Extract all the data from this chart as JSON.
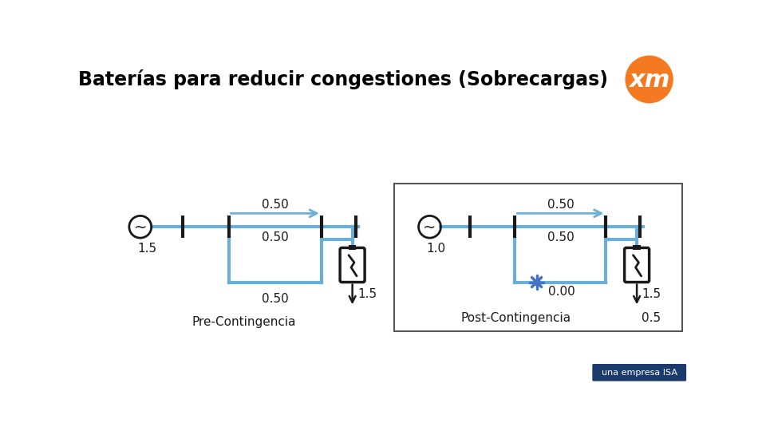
{
  "title": "Baterías para reducir congestiones (Sobrecargas)",
  "title_fontsize": 17,
  "title_fontweight": "bold",
  "bg_color": "#ffffff",
  "line_color": "#6baed6",
  "text_color": "#000000",
  "pre_label": "Pre-Contingencia",
  "post_label": "Post-Contingencia",
  "pre_values": {
    "top": "0.50",
    "mid": "0.50",
    "bot": "0.50",
    "left": "1.5",
    "right": "1.5"
  },
  "post_values": {
    "top": "0.50",
    "mid": "0.50",
    "bot": "0.00",
    "left": "1.0",
    "right": "1.5",
    "bat": "0.5"
  },
  "orange_color": "#f47920",
  "isa_blue": "#1a3a6b",
  "dark_color": "#1a1a1a"
}
